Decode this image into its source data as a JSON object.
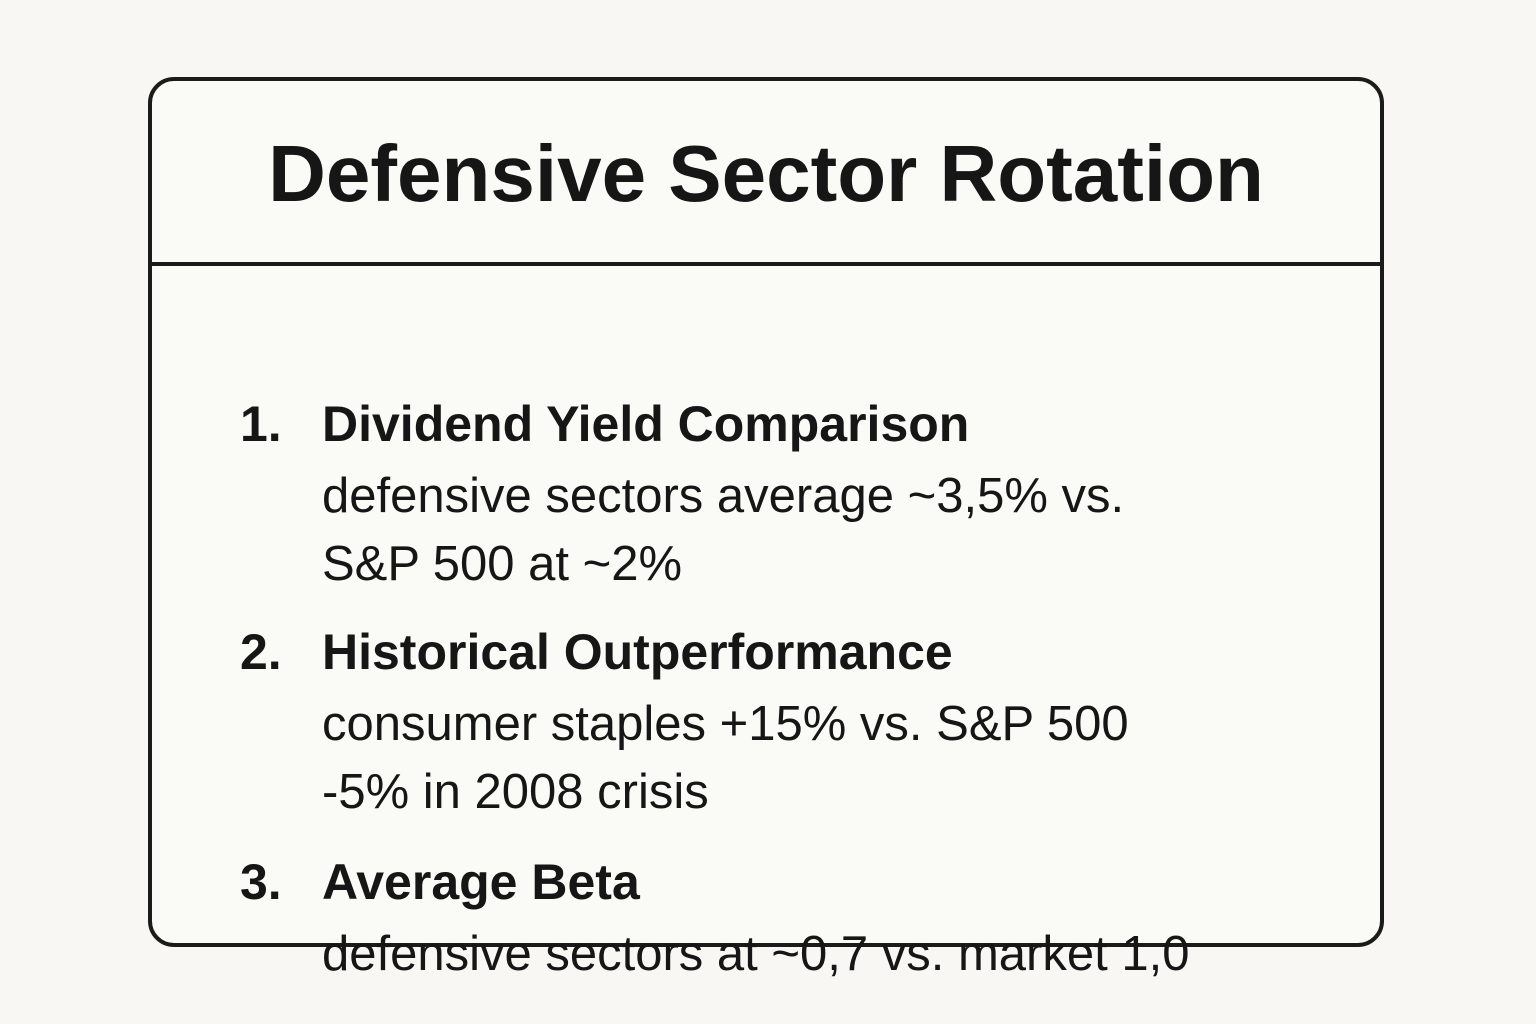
{
  "title": "Defensive Sector Rotation",
  "items": [
    {
      "number": "1.",
      "title": "Dividend Yield Comparison",
      "lines": [
        "defensive sectors average ~3,5% vs.",
        "S&P 500 at ~2%"
      ]
    },
    {
      "number": "2.",
      "title": "Historical Outperformance",
      "lines": [
        "consumer staples +15% vs. S&P 500",
        "-5% in 2008 crisis"
      ]
    },
    {
      "number": "3.",
      "title": "Average Beta",
      "lines": [
        "defensive sectors at ~0,7 vs. market 1,0"
      ]
    }
  ]
}
